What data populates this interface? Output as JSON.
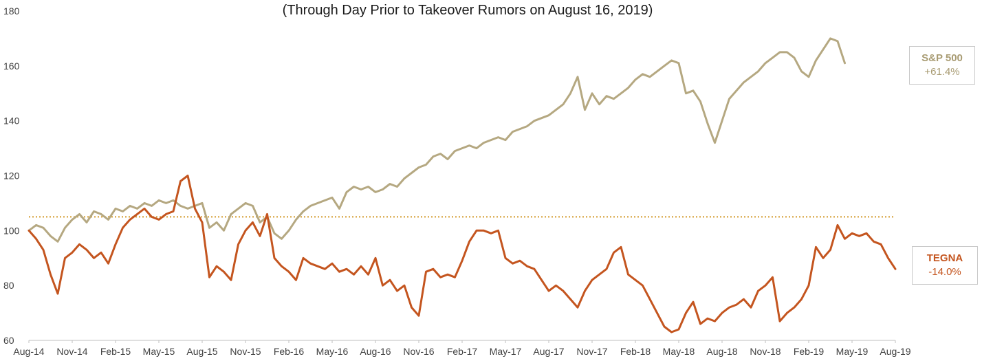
{
  "subtitle": "(Through Day Prior to Takeover Rumors on August 16, 2019)",
  "labels": {
    "sp500": {
      "name": "S&P 500",
      "change": "+61.4%"
    },
    "tegna": {
      "name": "TEGNA",
      "change": "-14.0%"
    }
  },
  "colors": {
    "sp500": "#b5a881",
    "tegna": "#c4551f",
    "reference": "#d39a2c",
    "axis": "#bfbfbf",
    "text": "#404040"
  },
  "chart_data": {
    "type": "line",
    "subtitle": "(Through Day Prior to Takeover Rumors on August 16, 2019)",
    "xlabel": "",
    "ylabel": "",
    "ylim": [
      60,
      180
    ],
    "yticks": [
      60,
      80,
      100,
      120,
      140,
      160,
      180
    ],
    "x_tick_labels": [
      "Aug-14",
      "Nov-14",
      "Feb-15",
      "May-15",
      "Aug-15",
      "Nov-15",
      "Feb-16",
      "May-16",
      "Aug-16",
      "Nov-16",
      "Feb-17",
      "May-17",
      "Aug-17",
      "Nov-17",
      "Feb-18",
      "May-18",
      "Aug-18",
      "Nov-18",
      "Feb-19",
      "May-19",
      "Aug-19"
    ],
    "x_range": [
      "Aug-14",
      "Aug-19"
    ],
    "reference_line": {
      "value": 105,
      "style": "dotted"
    },
    "grid": false,
    "series": [
      {
        "name": "S&P 500",
        "end_change": "+61.4%",
        "x": [
          0,
          0.5,
          1,
          1.5,
          2,
          2.5,
          3,
          3.5,
          4,
          4.5,
          5,
          5.5,
          6,
          6.5,
          7,
          7.5,
          8,
          8.5,
          9,
          9.5,
          10,
          10.5,
          11,
          11.5,
          12,
          12.5,
          13,
          13.5,
          14,
          14.5,
          15,
          15.5,
          16,
          16.5,
          17,
          17.5,
          18,
          18.5,
          19,
          19.5,
          20,
          20.5,
          21,
          21.5,
          22,
          22.5,
          23,
          23.5,
          24,
          24.5,
          25,
          25.5,
          26,
          26.5,
          27,
          27.5,
          28,
          28.5,
          29,
          29.5,
          30,
          30.5,
          31,
          31.5,
          32,
          32.5,
          33,
          33.5,
          34,
          34.5,
          35,
          35.5,
          36,
          36.5,
          37,
          37.5,
          38,
          38.5,
          39,
          39.5,
          40,
          40.5,
          41,
          41.5,
          42,
          42.5,
          43,
          43.5,
          44,
          44.5,
          45,
          45.5,
          46,
          46.5,
          47,
          47.5,
          48,
          48.5,
          49,
          49.5,
          50,
          50.5,
          51,
          51.5,
          52,
          52.5,
          53,
          53.5,
          54,
          54.5,
          55,
          55.5,
          56,
          56.5,
          57,
          57.5,
          58,
          58.5,
          59,
          59.5,
          60
        ],
        "values": [
          100,
          102,
          101,
          98,
          96,
          101,
          104,
          106,
          103,
          107,
          106,
          104,
          108,
          107,
          109,
          108,
          110,
          109,
          111,
          110,
          111,
          109,
          108,
          109,
          110,
          101,
          103,
          100,
          106,
          108,
          110,
          109,
          103,
          105,
          99,
          97,
          100,
          104,
          107,
          109,
          110,
          111,
          112,
          108,
          114,
          116,
          115,
          116,
          114,
          115,
          117,
          116,
          119,
          121,
          123,
          124,
          127,
          128,
          126,
          129,
          130,
          131,
          130,
          132,
          133,
          134,
          133,
          136,
          137,
          138,
          140,
          141,
          142,
          144,
          146,
          150,
          156,
          144,
          150,
          146,
          149,
          148,
          150,
          152,
          155,
          157,
          156,
          158,
          160,
          162,
          161,
          150,
          151,
          147,
          139,
          132,
          140,
          148,
          151,
          154,
          156,
          158,
          161,
          163,
          165,
          165,
          163,
          158,
          156,
          162,
          166,
          170,
          169,
          161,
          165,
          165,
          165,
          165,
          165,
          165,
          165
        ],
        "visible_to_index": 113
      },
      {
        "name": "TEGNA",
        "end_change": "-14.0%",
        "x": [
          0,
          0.5,
          1,
          1.5,
          2,
          2.5,
          3,
          3.5,
          4,
          4.5,
          5,
          5.5,
          6,
          6.5,
          7,
          7.5,
          8,
          8.5,
          9,
          9.5,
          10,
          10.5,
          11,
          11.5,
          12,
          12.5,
          13,
          13.5,
          14,
          14.5,
          15,
          15.5,
          16,
          16.5,
          17,
          17.5,
          18,
          18.5,
          19,
          19.5,
          20,
          20.5,
          21,
          21.5,
          22,
          22.5,
          23,
          23.5,
          24,
          24.5,
          25,
          25.5,
          26,
          26.5,
          27,
          27.5,
          28,
          28.5,
          29,
          29.5,
          30,
          30.5,
          31,
          31.5,
          32,
          32.5,
          33,
          33.5,
          34,
          34.5,
          35,
          35.5,
          36,
          36.5,
          37,
          37.5,
          38,
          38.5,
          39,
          39.5,
          40,
          40.5,
          41,
          41.5,
          42,
          42.5,
          43,
          43.5,
          44,
          44.5,
          45,
          45.5,
          46,
          46.5,
          47,
          47.5,
          48,
          48.5,
          49,
          49.5,
          50,
          50.5,
          51,
          51.5,
          52,
          52.5,
          53,
          53.5,
          54,
          54.5,
          55,
          55.5,
          56,
          56.5,
          57,
          57.5,
          58,
          58.5,
          59,
          59.5,
          60
        ],
        "values": [
          100,
          97,
          93,
          84,
          77,
          90,
          92,
          95,
          93,
          90,
          92,
          88,
          95,
          101,
          104,
          106,
          108,
          105,
          104,
          106,
          107,
          118,
          120,
          108,
          103,
          83,
          87,
          85,
          82,
          95,
          100,
          103,
          98,
          106,
          90,
          87,
          85,
          82,
          90,
          88,
          87,
          86,
          88,
          85,
          86,
          84,
          87,
          84,
          90,
          80,
          82,
          78,
          80,
          72,
          69,
          85,
          86,
          83,
          84,
          83,
          89,
          96,
          100,
          100,
          99,
          100,
          90,
          88,
          89,
          87,
          86,
          82,
          78,
          80,
          78,
          75,
          72,
          78,
          82,
          84,
          86,
          92,
          94,
          84,
          82,
          80,
          75,
          70,
          65,
          63,
          64,
          70,
          74,
          66,
          68,
          67,
          70,
          72,
          73,
          75,
          72,
          78,
          80,
          83,
          67,
          70,
          72,
          75,
          80,
          94,
          90,
          93,
          102,
          97,
          99,
          98,
          99,
          96,
          95,
          90,
          86
        ],
        "visible_to_index": 120
      }
    ]
  }
}
